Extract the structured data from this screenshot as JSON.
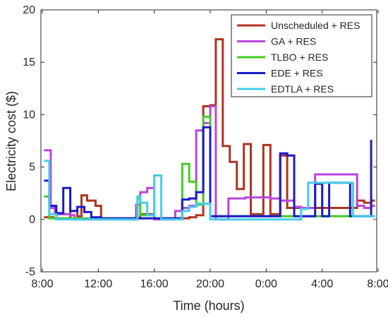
{
  "chart_data": {
    "type": "line",
    "step": true,
    "xlabel": "Time (hours)",
    "ylabel": "Electricity cost ($)",
    "xlim": [
      7.9,
      31.9
    ],
    "ylim": [
      -5,
      20
    ],
    "xticks": [
      {
        "value": 8,
        "label": "8:00"
      },
      {
        "value": 12,
        "label": "12:00"
      },
      {
        "value": 16,
        "label": "16:00"
      },
      {
        "value": 20,
        "label": "20:00"
      },
      {
        "value": 24,
        "label": "0:00"
      },
      {
        "value": 28,
        "label": "4:00"
      },
      {
        "value": 32,
        "label": "8:00"
      }
    ],
    "yticks": [
      {
        "value": -5,
        "label": "-5"
      },
      {
        "value": 0,
        "label": "0"
      },
      {
        "value": 5,
        "label": "5"
      },
      {
        "value": 10,
        "label": "10"
      },
      {
        "value": 15,
        "label": "15"
      },
      {
        "value": 20,
        "label": "20"
      }
    ],
    "legend_position": "top-right",
    "grid": false,
    "series": [
      {
        "name": "Unscheduled + RES",
        "color": "#b03320",
        "points": [
          [
            8.2,
            0.2
          ],
          [
            8.5,
            0.2
          ],
          [
            8.8,
            0.1
          ],
          [
            9.0,
            0.1
          ],
          [
            9.5,
            0.1
          ],
          [
            10.0,
            0.8
          ],
          [
            10.5,
            0.3
          ],
          [
            10.8,
            2.3
          ],
          [
            11.2,
            1.8
          ],
          [
            11.5,
            1.8
          ],
          [
            11.8,
            1.3
          ],
          [
            12.2,
            0.1
          ],
          [
            14.5,
            0.1
          ],
          [
            15.0,
            0.5
          ],
          [
            16.0,
            0.1
          ],
          [
            17.0,
            0.1
          ],
          [
            18.0,
            0.1
          ],
          [
            18.5,
            0.2
          ],
          [
            19.0,
            0.4
          ],
          [
            19.5,
            10.8
          ],
          [
            20.0,
            10.9
          ],
          [
            20.4,
            17.2
          ],
          [
            20.9,
            7.0
          ],
          [
            21.4,
            5.5
          ],
          [
            21.9,
            2.9
          ],
          [
            22.4,
            7.2
          ],
          [
            22.9,
            0.5
          ],
          [
            23.8,
            7.1
          ],
          [
            24.3,
            0.5
          ],
          [
            25.0,
            6.1
          ],
          [
            25.5,
            1.1
          ],
          [
            26.0,
            1.1
          ],
          [
            26.5,
            1.1
          ],
          [
            27.0,
            1.1
          ],
          [
            27.5,
            1.1
          ],
          [
            28.0,
            1.1
          ],
          [
            30.5,
            1.8
          ],
          [
            31.0,
            1.6
          ],
          [
            31.5,
            1.8
          ],
          [
            31.7,
            1.8
          ]
        ]
      },
      {
        "name": "GA + RES",
        "color": "#bb44e0",
        "points": [
          [
            8.2,
            6.6
          ],
          [
            8.6,
            1.1
          ],
          [
            8.9,
            0.5
          ],
          [
            9.5,
            0.5
          ],
          [
            10.0,
            0.4
          ],
          [
            10.3,
            0.0
          ],
          [
            12.2,
            0.0
          ],
          [
            14.5,
            0.0
          ],
          [
            14.7,
            1.4
          ],
          [
            15.0,
            2.6
          ],
          [
            15.5,
            3.0
          ],
          [
            16.0,
            0.0
          ],
          [
            17.5,
            0.8
          ],
          [
            18.0,
            1.1
          ],
          [
            18.5,
            1.3
          ],
          [
            19.0,
            8.5
          ],
          [
            19.5,
            9.2
          ],
          [
            20.0,
            10.8
          ],
          [
            20.4,
            0.0
          ],
          [
            21.3,
            2.0
          ],
          [
            22.0,
            2.0
          ],
          [
            22.5,
            2.1
          ],
          [
            23.5,
            2.1
          ],
          [
            24.3,
            2.0
          ],
          [
            25.0,
            1.8
          ],
          [
            26.0,
            1.2
          ],
          [
            26.5,
            1.1
          ],
          [
            27.0,
            1.1
          ],
          [
            27.5,
            4.3
          ],
          [
            30.0,
            4.3
          ],
          [
            30.5,
            1.3
          ],
          [
            31.0,
            1.1
          ],
          [
            31.5,
            1.3
          ],
          [
            31.7,
            1.3
          ]
        ]
      },
      {
        "name": "TLBO + RES",
        "color": "#44cc22",
        "points": [
          [
            8.2,
            2.2
          ],
          [
            8.5,
            0.1
          ],
          [
            9.0,
            0.1
          ],
          [
            12.2,
            0.1
          ],
          [
            14.5,
            0.1
          ],
          [
            14.8,
            2.0
          ],
          [
            15.0,
            0.4
          ],
          [
            15.5,
            0.4
          ],
          [
            16.0,
            0.1
          ],
          [
            17.0,
            0.1
          ],
          [
            18.0,
            5.3
          ],
          [
            18.5,
            3.6
          ],
          [
            19.0,
            1.4
          ],
          [
            19.5,
            9.8
          ],
          [
            20.0,
            0.3
          ],
          [
            24.0,
            0.3
          ],
          [
            26.5,
            0.3
          ],
          [
            30.5,
            0.3
          ],
          [
            31.7,
            0.3
          ]
        ]
      },
      {
        "name": "EDE + RES",
        "color": "#1a1acc",
        "points": [
          [
            8.2,
            3.7
          ],
          [
            8.5,
            1.3
          ],
          [
            9.0,
            0.6
          ],
          [
            9.5,
            3.0
          ],
          [
            10.0,
            0.8
          ],
          [
            10.5,
            1.2
          ],
          [
            11.0,
            0.7
          ],
          [
            11.5,
            0.2
          ],
          [
            12.2,
            0.1
          ],
          [
            14.5,
            0.1
          ],
          [
            15.5,
            0.1
          ],
          [
            16.0,
            0.1
          ],
          [
            17.0,
            0.1
          ],
          [
            18.0,
            1.9
          ],
          [
            18.5,
            2.0
          ],
          [
            19.0,
            2.6
          ],
          [
            19.5,
            8.8
          ],
          [
            20.0,
            0.3
          ],
          [
            21.5,
            0.3
          ],
          [
            24.0,
            0.3
          ],
          [
            24.5,
            0.3
          ],
          [
            25.0,
            6.3
          ],
          [
            25.5,
            6.1
          ],
          [
            26.0,
            0.3
          ],
          [
            26.5,
            0.3
          ],
          [
            27.5,
            3.4
          ],
          [
            28.0,
            0.3
          ],
          [
            28.5,
            3.5
          ],
          [
            30.0,
            0.3
          ],
          [
            31.5,
            7.5
          ]
        ]
      },
      {
        "name": "EDTLA + RES",
        "color": "#44ccea",
        "points": [
          [
            8.2,
            5.6
          ],
          [
            8.5,
            0.5
          ],
          [
            9.0,
            0.0
          ],
          [
            12.2,
            0.0
          ],
          [
            14.5,
            0.0
          ],
          [
            14.8,
            2.2
          ],
          [
            15.0,
            1.6
          ],
          [
            15.5,
            0.4
          ],
          [
            16.0,
            4.2
          ],
          [
            16.5,
            0.0
          ],
          [
            17.5,
            0.0
          ],
          [
            18.0,
            0.8
          ],
          [
            18.5,
            1.2
          ],
          [
            19.0,
            1.5
          ],
          [
            19.5,
            1.5
          ],
          [
            20.0,
            0.0
          ],
          [
            22.0,
            0.0
          ],
          [
            24.0,
            0.0
          ],
          [
            26.0,
            0.0
          ],
          [
            26.3,
            0.0
          ],
          [
            26.5,
            1.0
          ],
          [
            27.0,
            3.5
          ],
          [
            28.5,
            3.5
          ],
          [
            30.0,
            3.5
          ],
          [
            30.2,
            0.3
          ],
          [
            31.7,
            0.3
          ]
        ]
      }
    ]
  }
}
